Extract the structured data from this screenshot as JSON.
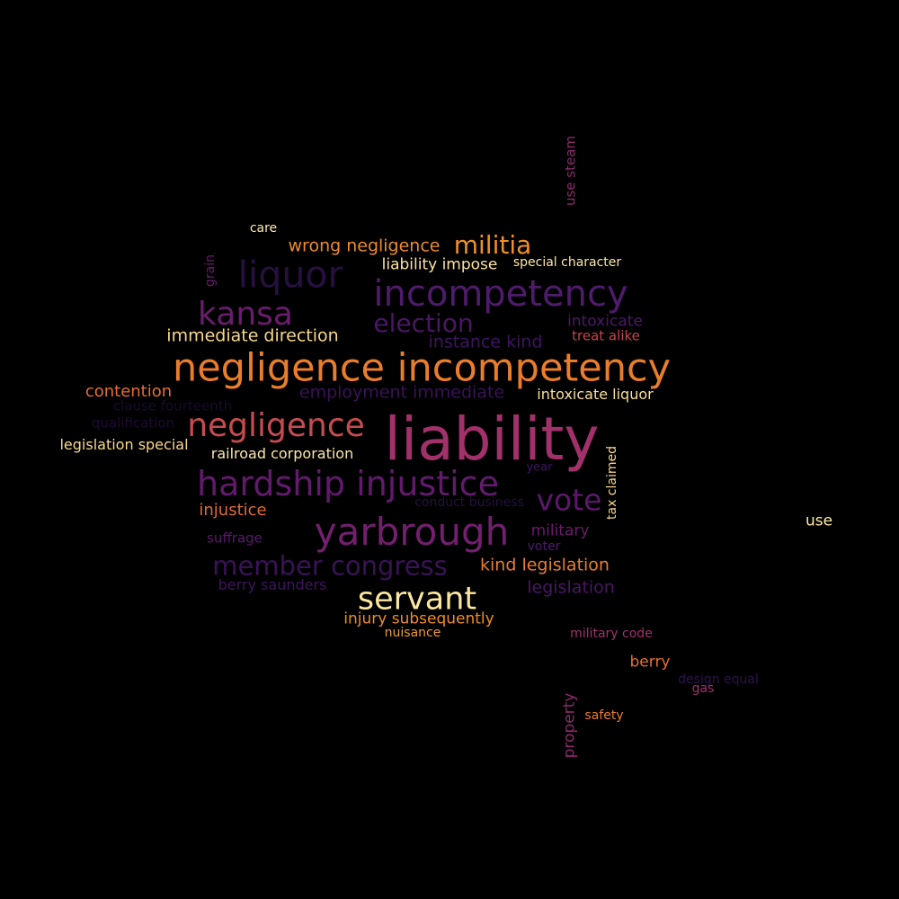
{
  "words": [
    {
      "text": "liability",
      "color": "#a2306b"
    },
    {
      "text": "negligence incompetency",
      "color": "#e97d2b"
    },
    {
      "text": "incompetency",
      "color": "#4f1b6c"
    },
    {
      "text": "servant",
      "color": "#fce7a0"
    },
    {
      "text": "yarbrough",
      "color": "#721f6e"
    },
    {
      "text": "hardship injustice",
      "color": "#621a6d"
    },
    {
      "text": "negligence",
      "color": "#c64b50"
    },
    {
      "text": "liquor",
      "color": "#26103f"
    },
    {
      "text": "kansa",
      "color": "#6b1c6e"
    },
    {
      "text": "vote",
      "color": "#5d186e"
    },
    {
      "text": "member congress",
      "color": "#3a1258"
    },
    {
      "text": "election",
      "color": "#4a1665"
    },
    {
      "text": "militia",
      "color": "#f0902a"
    },
    {
      "text": "wrong negligence",
      "color": "#ed8a2c"
    },
    {
      "text": "immediate direction",
      "color": "#f7d88a"
    },
    {
      "text": "kind legislation",
      "color": "#e97d2b"
    },
    {
      "text": "legislation",
      "color": "#4a1665"
    },
    {
      "text": "employment immediate",
      "color": "#3a1258"
    },
    {
      "text": "instance kind",
      "color": "#3e1460"
    },
    {
      "text": "contention",
      "color": "#e46e2f"
    },
    {
      "text": "liability impose",
      "color": "#fbe3a0"
    },
    {
      "text": "injury subsequently",
      "color": "#ef8c2a"
    },
    {
      "text": "intoxicate liquor",
      "color": "#fbdf96"
    },
    {
      "text": "intoxicate",
      "color": "#4d1768"
    },
    {
      "text": "treat alike",
      "color": "#c7424f"
    },
    {
      "text": "legislation special",
      "color": "#fad88a"
    },
    {
      "text": "railroad corporation",
      "color": "#fbe8a8"
    },
    {
      "text": "injustice",
      "color": "#e06a32"
    },
    {
      "text": "military",
      "color": "#6b1c6e"
    },
    {
      "text": "berry saunders",
      "color": "#3e1460"
    },
    {
      "text": "berry",
      "color": "#e46e2f"
    },
    {
      "text": "suffrage",
      "color": "#5d186e"
    },
    {
      "text": "special character",
      "color": "#fce7a8"
    },
    {
      "text": "care",
      "color": "#fceaa8"
    },
    {
      "text": "use",
      "color": "#fceaa8"
    },
    {
      "text": "nuisance",
      "color": "#f09a2c"
    },
    {
      "text": "military code",
      "color": "#a2306b"
    },
    {
      "text": "clause fourteenth",
      "color": "#1a0a2e"
    },
    {
      "text": "qualification",
      "color": "#1c0b33"
    },
    {
      "text": "conduct business",
      "color": "#26103f"
    },
    {
      "text": "year",
      "color": "#3e1460"
    },
    {
      "text": "voter",
      "color": "#4f1b6c"
    },
    {
      "text": "gas",
      "color": "#a2306b"
    },
    {
      "text": "design equal",
      "color": "#2e1150"
    },
    {
      "text": "safety",
      "color": "#e97d2b"
    },
    {
      "text": "use steam",
      "color": "#8c2a6c"
    },
    {
      "text": "grain",
      "color": "#6b1c6e"
    },
    {
      "text": "tax claimed",
      "color": "#fad88a"
    },
    {
      "text": "property",
      "color": "#8c2a6c"
    }
  ]
}
